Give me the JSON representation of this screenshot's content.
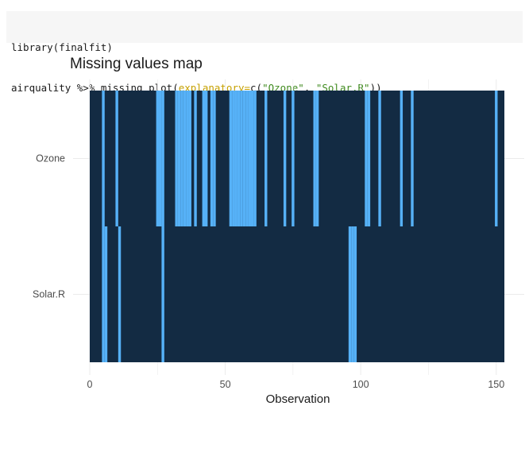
{
  "code": {
    "line1": "library(finalfit)",
    "line2_plain": "airquality %>% missing_plot(",
    "line2_arg": "explanatory=",
    "line2_call": "c(",
    "line2_str1": "\"Ozone\"",
    "line2_sep": ", ",
    "line2_str2": "\"Solar.R\"",
    "line2_close": "))"
  },
  "chart_data": {
    "type": "heatmap",
    "title": "Missing values map",
    "xlabel": "Observation",
    "ylabel": "",
    "categories": [
      "Ozone",
      "Solar.R"
    ],
    "xlim": [
      0,
      153
    ],
    "xticks": [
      0,
      50,
      100,
      150
    ],
    "n_obs": 153,
    "missing_rows": {
      "Ozone": [
        5,
        10,
        25,
        26,
        27,
        32,
        33,
        34,
        35,
        36,
        37,
        39,
        42,
        43,
        45,
        46,
        52,
        53,
        54,
        55,
        56,
        57,
        58,
        59,
        60,
        61,
        65,
        72,
        75,
        83,
        84,
        102,
        103,
        107,
        115,
        119,
        150
      ],
      "Solar.R": [
        5,
        6,
        11,
        27,
        96,
        97,
        98
      ]
    },
    "colors": {
      "present": "#132b43",
      "missing": "#56b1f7",
      "grid": "#ebebeb",
      "text": "#4d4d4d"
    },
    "grid": true,
    "legend": "none"
  }
}
